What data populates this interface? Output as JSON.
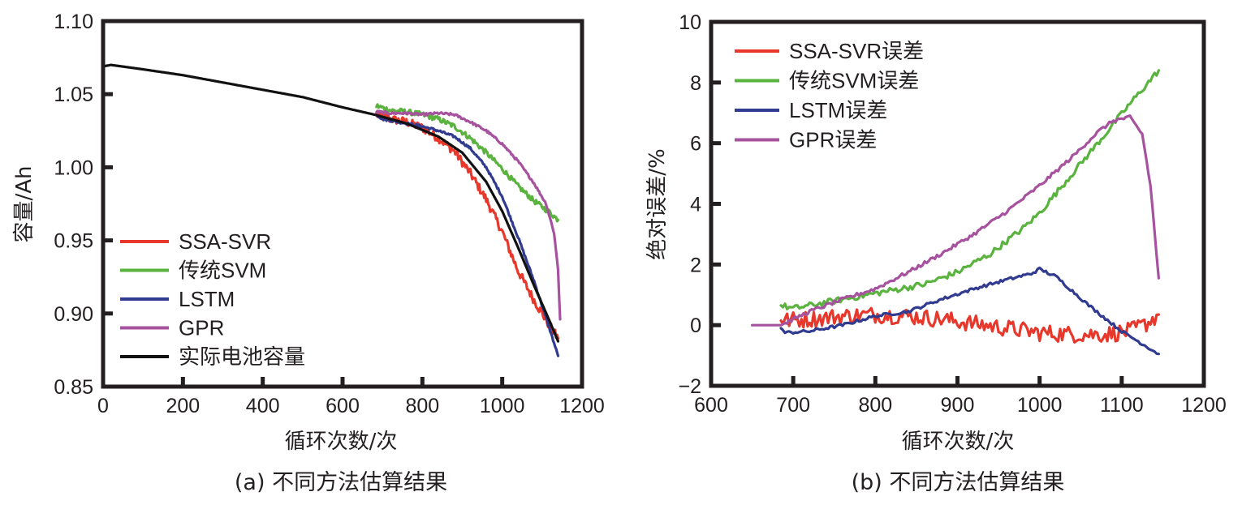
{
  "chart_data": [
    {
      "id": "a",
      "type": "line",
      "title": "",
      "caption": "(a) 不同方法估算结果",
      "xlabel": "循环次数/次",
      "ylabel": "容量/Ah",
      "xlim": [
        0,
        1200
      ],
      "ylim": [
        0.85,
        1.1
      ],
      "xticks": [
        0,
        200,
        400,
        600,
        800,
        1000,
        1200
      ],
      "yticks": [
        0.85,
        0.9,
        0.95,
        1.0,
        1.05,
        1.1
      ],
      "ytick_labels": [
        "0.85",
        "0.90",
        "0.95",
        "1.00",
        "1.05",
        "1.10"
      ],
      "grid": false,
      "legend_position": "lower-left",
      "series": [
        {
          "name": "SSA-SVR",
          "color": "#e8382c",
          "noise": 0.003,
          "x": [
            685,
            720,
            760,
            800,
            840,
            880,
            920,
            960,
            1000,
            1040,
            1080,
            1120,
            1140
          ],
          "y": [
            1.036,
            1.033,
            1.031,
            1.027,
            1.02,
            1.011,
            0.996,
            0.978,
            0.956,
            0.929,
            0.909,
            0.891,
            0.883
          ]
        },
        {
          "name": "传统SVM",
          "color": "#5ab33e",
          "noise": 0.0018,
          "x": [
            685,
            720,
            760,
            800,
            840,
            880,
            920,
            960,
            1000,
            1040,
            1080,
            1120,
            1140
          ],
          "y": [
            1.042,
            1.039,
            1.038,
            1.036,
            1.033,
            1.028,
            1.02,
            1.01,
            0.999,
            0.987,
            0.977,
            0.969,
            0.964
          ]
        },
        {
          "name": "LSTM",
          "color": "#313b8f",
          "noise": 0.0008,
          "x": [
            685,
            700,
            720,
            760,
            800,
            840,
            880,
            920,
            960,
            1000,
            1040,
            1080,
            1110,
            1140
          ],
          "y": [
            1.036,
            1.033,
            1.032,
            1.03,
            1.028,
            1.025,
            1.021,
            1.013,
            1.0,
            0.98,
            0.952,
            0.922,
            0.897,
            0.871
          ]
        },
        {
          "name": "GPR",
          "color": "#a6529f",
          "noise": 0.0008,
          "x": [
            685,
            720,
            760,
            800,
            840,
            880,
            920,
            960,
            1000,
            1040,
            1080,
            1110,
            1130,
            1140,
            1145
          ],
          "y": [
            1.038,
            1.037,
            1.037,
            1.036,
            1.037,
            1.036,
            1.031,
            1.025,
            1.016,
            1.004,
            0.989,
            0.975,
            0.955,
            0.93,
            0.896
          ]
        },
        {
          "name": "实际电池容量",
          "color": "#111111",
          "noise": 0.0,
          "x": [
            0,
            20,
            100,
            200,
            300,
            400,
            500,
            600,
            680,
            760,
            840,
            900,
            960,
            1000,
            1040,
            1080,
            1120,
            1140
          ],
          "y": [
            1.069,
            1.07,
            1.067,
            1.063,
            1.058,
            1.053,
            1.048,
            1.041,
            1.036,
            1.03,
            1.021,
            1.01,
            0.99,
            0.97,
            0.945,
            0.919,
            0.894,
            0.881
          ]
        }
      ]
    },
    {
      "id": "b",
      "type": "line",
      "title": "",
      "caption": "(b) 不同方法估算结果",
      "xlabel": "循环次数/次",
      "ylabel": "绝对误差/%",
      "xlim": [
        600,
        1200
      ],
      "ylim": [
        -2,
        10
      ],
      "xticks": [
        600,
        700,
        800,
        900,
        1000,
        1100,
        1200
      ],
      "yticks": [
        -2,
        0,
        2,
        4,
        6,
        8,
        10
      ],
      "ytick_labels": [
        "−2",
        "0",
        "2",
        "4",
        "6",
        "8",
        "10"
      ],
      "grid": false,
      "legend_position": "top-left",
      "series": [
        {
          "name": "SSA-SVR误差",
          "color": "#e8382c",
          "noise": 0.28,
          "x": [
            685,
            720,
            760,
            800,
            840,
            880,
            920,
            960,
            1000,
            1040,
            1080,
            1110,
            1130,
            1145
          ],
          "y": [
            0.15,
            0.2,
            0.3,
            0.35,
            0.3,
            0.2,
            0.05,
            -0.1,
            -0.25,
            -0.3,
            -0.3,
            -0.2,
            0.05,
            0.35
          ]
        },
        {
          "name": "传统SVM误差",
          "color": "#5ab33e",
          "noise": 0.1,
          "x": [
            685,
            700,
            740,
            780,
            820,
            860,
            900,
            940,
            980,
            1000,
            1040,
            1080,
            1110,
            1145
          ],
          "y": [
            0.65,
            0.55,
            0.75,
            0.95,
            1.15,
            1.35,
            1.75,
            2.35,
            3.2,
            3.7,
            5.0,
            6.3,
            7.3,
            8.4
          ]
        },
        {
          "name": "LSTM误差",
          "color": "#313b8f",
          "noise": 0.05,
          "x": [
            685,
            690,
            720,
            760,
            800,
            840,
            880,
            920,
            960,
            990,
            1000,
            1020,
            1060,
            1100,
            1145
          ],
          "y": [
            -0.1,
            -0.25,
            -0.2,
            0.0,
            0.3,
            0.45,
            0.85,
            1.2,
            1.5,
            1.7,
            1.85,
            1.6,
            0.65,
            -0.2,
            -0.95
          ]
        },
        {
          "name": "GPR误差",
          "color": "#a6529f",
          "noise": 0.06,
          "x": [
            650,
            685,
            720,
            760,
            800,
            840,
            880,
            920,
            960,
            1000,
            1040,
            1070,
            1090,
            1110,
            1125,
            1135,
            1145
          ],
          "y": [
            0.0,
            0.0,
            0.45,
            0.85,
            1.2,
            1.75,
            2.35,
            3.0,
            3.75,
            4.6,
            5.55,
            6.35,
            6.75,
            6.85,
            6.3,
            4.6,
            1.55
          ]
        }
      ]
    }
  ]
}
